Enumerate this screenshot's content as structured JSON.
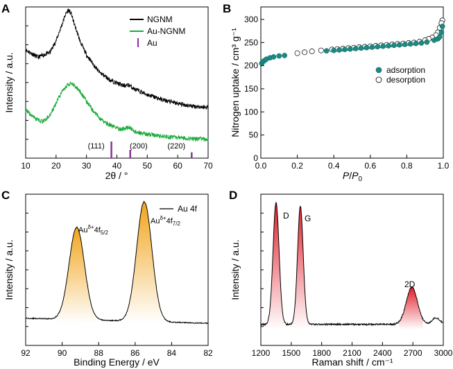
{
  "chart_data": [
    {
      "panel": "A",
      "type": "line",
      "xlabel": "2θ / °",
      "ylabel": "Intensity / a.u.",
      "xlim": [
        10,
        70
      ],
      "xticks": [
        "10",
        "20",
        "30",
        "40",
        "50",
        "60",
        "70"
      ],
      "legend": {
        "position": "top-right",
        "entries": [
          "NGNM",
          "Au-NGNM",
          "Au"
        ]
      },
      "series": [
        {
          "name": "NGNM",
          "color": "#000000",
          "x": [
            10,
            14,
            18,
            20,
            22,
            23,
            24,
            25,
            26,
            28,
            30,
            34,
            38,
            42,
            44,
            46,
            50,
            55,
            60,
            65,
            70
          ],
          "y": [
            0.78,
            0.72,
            0.76,
            0.85,
            0.98,
            1.05,
            1.09,
            1.06,
            0.98,
            0.84,
            0.74,
            0.61,
            0.54,
            0.5,
            0.505,
            0.47,
            0.43,
            0.39,
            0.36,
            0.34,
            0.33
          ]
        },
        {
          "name": "Au-NGNM",
          "color": "#1aaa3a",
          "x": [
            10,
            12,
            14,
            16,
            18,
            20,
            22,
            24,
            25,
            26,
            28,
            30,
            32,
            35,
            38,
            41,
            43,
            44,
            45,
            46,
            50,
            55,
            60,
            65,
            70
          ],
          "y": [
            0.31,
            0.265,
            0.23,
            0.22,
            0.27,
            0.36,
            0.46,
            0.51,
            0.52,
            0.5,
            0.45,
            0.38,
            0.31,
            0.23,
            0.19,
            0.16,
            0.165,
            0.18,
            0.16,
            0.14,
            0.12,
            0.105,
            0.095,
            0.085,
            0.08
          ]
        }
      ],
      "reference_bars": {
        "name": "Au",
        "color": "#8e2fa3",
        "peaks": [
          {
            "x": 38.2,
            "label": "(111)",
            "height": 1.0
          },
          {
            "x": 44.4,
            "label": "(200)",
            "height": 0.5
          },
          {
            "x": 64.6,
            "label": "(220)",
            "height": 0.35
          }
        ]
      }
    },
    {
      "panel": "B",
      "type": "scatter",
      "xlabel": "P/P0",
      "ylabel": "Nitrogen uptake / cm³ g⁻¹",
      "xlim": [
        0.0,
        1.0
      ],
      "ylim": [
        0,
        300
      ],
      "xticks": [
        "0.0",
        "0.2",
        "0.4",
        "0.6",
        "0.8",
        "1.0"
      ],
      "yticks": [
        "0",
        "50",
        "100",
        "150",
        "200",
        "250",
        "300"
      ],
      "legend": {
        "position": "center-right",
        "entries": [
          "adsorption",
          "desorption"
        ]
      },
      "series": [
        {
          "name": "adsorption",
          "marker": "filled-circle",
          "color": "#1a8a82",
          "x": [
            0.005,
            0.01,
            0.02,
            0.03,
            0.05,
            0.07,
            0.1,
            0.13,
            0.36,
            0.4,
            0.43,
            0.46,
            0.49,
            0.52,
            0.55,
            0.58,
            0.61,
            0.64,
            0.67,
            0.7,
            0.73,
            0.76,
            0.79,
            0.82,
            0.85,
            0.88,
            0.91,
            0.95,
            0.97,
            0.98,
            0.99,
            0.995
          ],
          "y": [
            205,
            208,
            211,
            214,
            217,
            219,
            221,
            222,
            232,
            233,
            234,
            235,
            236,
            237,
            238,
            239,
            240,
            241,
            242,
            243,
            244,
            245,
            246,
            247,
            248,
            249,
            251,
            255,
            258,
            262,
            272,
            285
          ]
        },
        {
          "name": "desorption",
          "marker": "open-circle",
          "color": "#000000",
          "x": [
            0.995,
            0.99,
            0.98,
            0.97,
            0.96,
            0.94,
            0.92,
            0.9,
            0.87,
            0.84,
            0.81,
            0.78,
            0.75,
            0.72,
            0.69,
            0.66,
            0.63,
            0.6,
            0.57,
            0.54,
            0.51,
            0.48,
            0.45,
            0.42,
            0.39,
            0.33,
            0.28,
            0.24,
            0.2
          ],
          "y": [
            298,
            292,
            282,
            272,
            266,
            261,
            258,
            255,
            252,
            250,
            249,
            248,
            247,
            246,
            245,
            244,
            243,
            242,
            241,
            240,
            239,
            238,
            237,
            236,
            235,
            233,
            231,
            229,
            227
          ]
        }
      ]
    },
    {
      "panel": "C",
      "type": "line",
      "xlabel": "Binding Energy / eV",
      "ylabel": "Intensity / a.u.",
      "xlim": [
        92,
        82
      ],
      "xticks": [
        "92",
        "90",
        "88",
        "86",
        "84",
        "82"
      ],
      "legend": {
        "position": "top-right",
        "entries": [
          "Au 4f"
        ]
      },
      "annotations": [
        "Auδ+4f5/2",
        "Auδ+4f7/2"
      ],
      "peaks": [
        {
          "center": 89.2,
          "height": 0.74,
          "width": 0.42
        },
        {
          "center": 85.5,
          "height": 0.96,
          "width": 0.42
        }
      ],
      "baseline_left": 0.04,
      "baseline_right": 0.0,
      "fill_color": "#f0a010"
    },
    {
      "panel": "D",
      "type": "line",
      "xlabel": "Raman shift / cm⁻¹",
      "ylabel": "Intensity / a.u.",
      "xlim": [
        1200,
        3000
      ],
      "xticks": [
        "1200",
        "1500",
        "1800",
        "2100",
        "2400",
        "2700",
        "3000"
      ],
      "annotations": [
        "D",
        "G",
        "2D"
      ],
      "peaks": [
        {
          "center": 1350,
          "height": 0.95,
          "width": 30
        },
        {
          "center": 1590,
          "height": 0.92,
          "width": 28
        },
        {
          "center": 2690,
          "height": 0.29,
          "width": 55
        },
        {
          "center": 2930,
          "height": 0.05,
          "width": 40
        }
      ],
      "baseline": 0.04,
      "fill_color": "#e0101e"
    }
  ]
}
